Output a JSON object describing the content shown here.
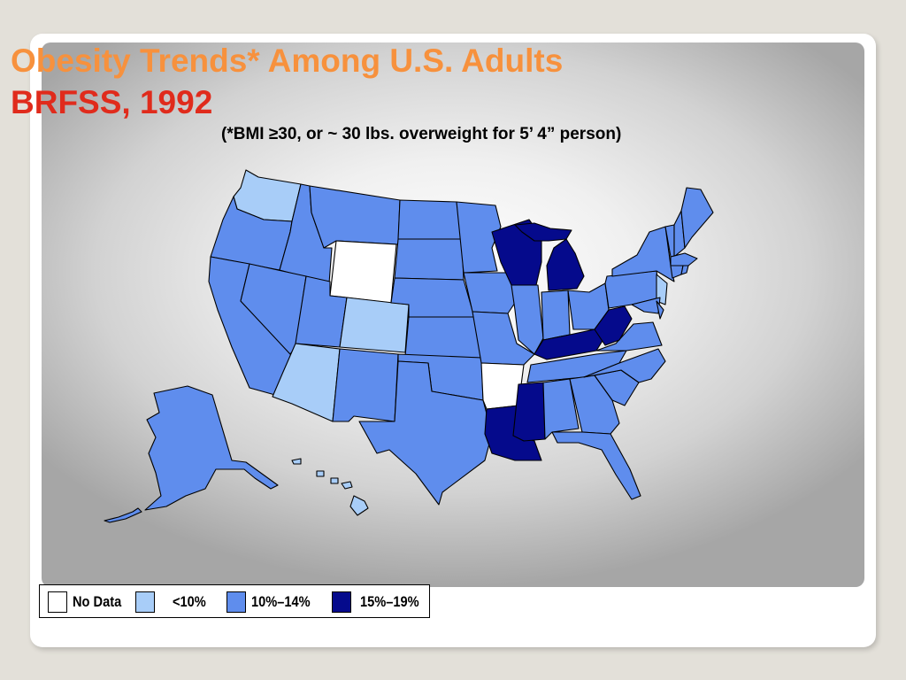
{
  "slide": {
    "title_line1": "Obesity Trends* Among U.S. Adults",
    "title_line2": "BRFSS, 1992",
    "subtitle": "(*BMI ≥30, or ~ 30 lbs. overweight for 5’ 4” person)"
  },
  "map": {
    "categories": [
      {
        "key": "nodata",
        "label": "No Data",
        "color": "#ffffff"
      },
      {
        "key": "lt10",
        "label": "<10%",
        "color": "#a8cdf8"
      },
      {
        "key": "10to14",
        "label": "10%–14%",
        "color": "#5f8ded"
      },
      {
        "key": "15to19",
        "label": "15%–19%",
        "color": "#050a8c"
      }
    ],
    "states": {
      "nodata": [
        "Wyoming",
        "Arkansas"
      ],
      "lt10": [
        "Washington",
        "Colorado",
        "Arizona",
        "New Jersey",
        "Hawaii"
      ],
      "15to19": [
        "Wisconsin",
        "Michigan",
        "Kentucky",
        "West Virginia",
        "Mississippi",
        "Louisiana"
      ]
    }
  }
}
